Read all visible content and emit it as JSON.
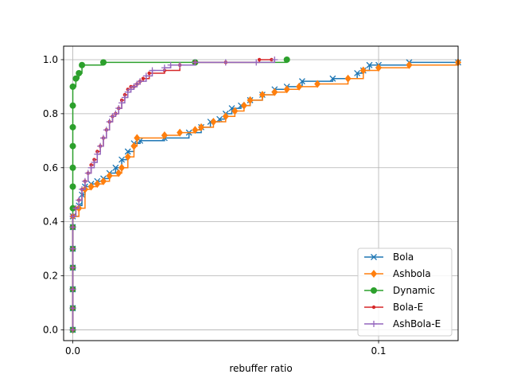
{
  "chart_data": {
    "type": "line",
    "title": "",
    "xlabel": "rebuffer ratio",
    "ylabel": "",
    "xlim": [
      -0.003,
      0.126
    ],
    "ylim": [
      -0.04,
      1.05
    ],
    "xticks": [
      {
        "value": 0.0,
        "label": "0.0"
      },
      {
        "value": 0.1,
        "label": "0.1"
      }
    ],
    "yticks": [
      {
        "value": 0.0,
        "label": "0.0"
      },
      {
        "value": 0.2,
        "label": "0.2"
      },
      {
        "value": 0.4,
        "label": "0.4"
      },
      {
        "value": 0.6,
        "label": "0.6"
      },
      {
        "value": 0.8,
        "label": "0.8"
      },
      {
        "value": 1.0,
        "label": "1.0"
      }
    ],
    "grid": true,
    "legend_position": "lower-right",
    "series": [
      {
        "name": "Bola",
        "color": "#1f77b4",
        "marker": "x",
        "x": [
          0,
          0,
          0,
          0,
          0,
          0,
          0,
          0.002,
          0.003,
          0.004,
          0.006,
          0.008,
          0.01,
          0.012,
          0.014,
          0.016,
          0.018,
          0.02,
          0.022,
          0.03,
          0.038,
          0.042,
          0.045,
          0.048,
          0.05,
          0.052,
          0.055,
          0.058,
          0.062,
          0.066,
          0.07,
          0.075,
          0.085,
          0.093,
          0.095,
          0.097,
          0.1,
          0.11,
          0.126
        ],
        "y": [
          0.0,
          0.08,
          0.15,
          0.23,
          0.3,
          0.38,
          0.42,
          0.46,
          0.5,
          0.53,
          0.54,
          0.55,
          0.56,
          0.58,
          0.6,
          0.63,
          0.66,
          0.69,
          0.7,
          0.71,
          0.73,
          0.75,
          0.77,
          0.78,
          0.8,
          0.82,
          0.83,
          0.85,
          0.87,
          0.89,
          0.9,
          0.92,
          0.93,
          0.95,
          0.96,
          0.98,
          0.98,
          0.99,
          0.99
        ]
      },
      {
        "name": "Ashbola",
        "color": "#ff7f0e",
        "marker": "diamond",
        "x": [
          0,
          0,
          0,
          0,
          0,
          0,
          0,
          0.002,
          0.004,
          0.006,
          0.008,
          0.01,
          0.012,
          0.015,
          0.016,
          0.018,
          0.02,
          0.021,
          0.03,
          0.035,
          0.04,
          0.042,
          0.046,
          0.05,
          0.053,
          0.056,
          0.058,
          0.062,
          0.066,
          0.07,
          0.074,
          0.08,
          0.09,
          0.095,
          0.1,
          0.11,
          0.126
        ],
        "y": [
          0.0,
          0.08,
          0.15,
          0.23,
          0.3,
          0.38,
          0.42,
          0.45,
          0.52,
          0.53,
          0.54,
          0.55,
          0.57,
          0.58,
          0.6,
          0.64,
          0.68,
          0.71,
          0.72,
          0.73,
          0.74,
          0.75,
          0.77,
          0.79,
          0.81,
          0.83,
          0.85,
          0.87,
          0.88,
          0.89,
          0.9,
          0.91,
          0.93,
          0.96,
          0.97,
          0.98,
          0.99
        ]
      },
      {
        "name": "Dynamic",
        "color": "#2ca02c",
        "marker": "o",
        "x": [
          0,
          0,
          0,
          0,
          0,
          0,
          0,
          0,
          0,
          0,
          0,
          0,
          0,
          0.001,
          0.002,
          0.003,
          0.01,
          0.04,
          0.07
        ],
        "y": [
          0.0,
          0.08,
          0.15,
          0.23,
          0.3,
          0.38,
          0.45,
          0.53,
          0.6,
          0.68,
          0.75,
          0.83,
          0.9,
          0.93,
          0.95,
          0.98,
          0.99,
          0.99,
          1.0
        ]
      },
      {
        "name": "Bola-E",
        "color": "#d62728",
        "marker": ".",
        "x": [
          0,
          0,
          0,
          0,
          0,
          0,
          0,
          0.001,
          0.002,
          0.003,
          0.004,
          0.005,
          0.006,
          0.007,
          0.008,
          0.009,
          0.01,
          0.011,
          0.012,
          0.013,
          0.014,
          0.015,
          0.016,
          0.017,
          0.018,
          0.019,
          0.02,
          0.021,
          0.022,
          0.023,
          0.025,
          0.03,
          0.035,
          0.04,
          0.05,
          0.061,
          0.065
        ],
        "y": [
          0.0,
          0.08,
          0.15,
          0.23,
          0.3,
          0.38,
          0.42,
          0.45,
          0.48,
          0.52,
          0.55,
          0.58,
          0.61,
          0.63,
          0.66,
          0.68,
          0.71,
          0.74,
          0.77,
          0.79,
          0.8,
          0.82,
          0.85,
          0.87,
          0.89,
          0.9,
          0.9,
          0.91,
          0.92,
          0.93,
          0.95,
          0.96,
          0.98,
          0.99,
          0.99,
          1.0,
          1.0
        ]
      },
      {
        "name": "AshBola-E",
        "color": "#9467bd",
        "marker": "+",
        "x": [
          0,
          0,
          0,
          0,
          0,
          0,
          0,
          0.001,
          0.002,
          0.003,
          0.004,
          0.005,
          0.006,
          0.007,
          0.008,
          0.009,
          0.01,
          0.011,
          0.012,
          0.013,
          0.014,
          0.015,
          0.016,
          0.017,
          0.018,
          0.019,
          0.02,
          0.021,
          0.022,
          0.024,
          0.026,
          0.03,
          0.032,
          0.035,
          0.04,
          0.05,
          0.06,
          0.066
        ],
        "y": [
          0.0,
          0.08,
          0.15,
          0.23,
          0.3,
          0.38,
          0.42,
          0.45,
          0.48,
          0.52,
          0.55,
          0.58,
          0.6,
          0.62,
          0.65,
          0.68,
          0.71,
          0.74,
          0.77,
          0.79,
          0.8,
          0.82,
          0.84,
          0.86,
          0.88,
          0.89,
          0.9,
          0.91,
          0.92,
          0.94,
          0.96,
          0.97,
          0.98,
          0.98,
          0.99,
          0.99,
          0.99,
          1.0
        ]
      }
    ]
  }
}
